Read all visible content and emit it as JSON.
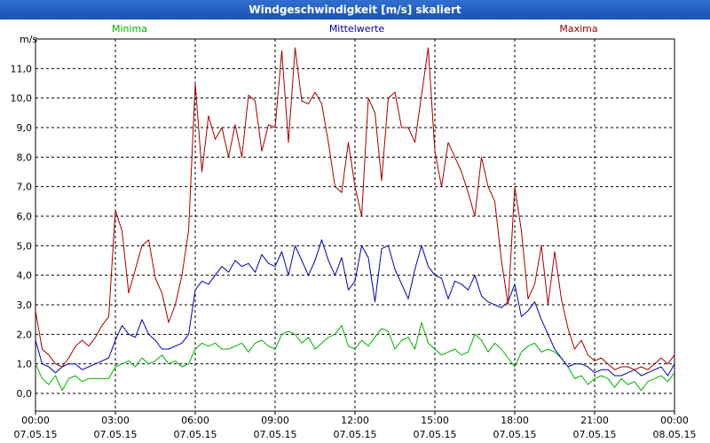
{
  "window": {
    "title": "Windgeschwindigkeit [m/s] skaliert"
  },
  "colors": {
    "minima": "#00b000",
    "mittelwerte": "#0000aa",
    "maxima": "#a00000",
    "grid": "#000000",
    "titlebar": "#2160c4"
  },
  "chart_data": {
    "type": "line",
    "title": "Windgeschwindigkeit [m/s] skaliert",
    "ylabel": "m/s",
    "ylim": [
      -0.6,
      12.0
    ],
    "xlim": [
      "07.05.15 00:00",
      "08.05.15 00:00"
    ],
    "grid": "on (dashed)",
    "legend": "top",
    "yticks": [
      "0,0",
      "1,0",
      "2,0",
      "3,0",
      "4,0",
      "5,0",
      "6,0",
      "7,0",
      "8,0",
      "9,0",
      "10,0",
      "11,0"
    ],
    "xticks": [
      {
        "time": "00:00",
        "date": "07.05.15"
      },
      {
        "time": "03:00",
        "date": "07.05.15"
      },
      {
        "time": "06:00",
        "date": "07.05.15"
      },
      {
        "time": "09:00",
        "date": "07.05.15"
      },
      {
        "time": "12:00",
        "date": "07.05.15"
      },
      {
        "time": "15:00",
        "date": "07.05.15"
      },
      {
        "time": "18:00",
        "date": "07.05.15"
      },
      {
        "time": "21:00",
        "date": "07.05.15"
      },
      {
        "time": "00:00",
        "date": "08.05.15"
      }
    ],
    "x_hours": [
      0,
      0.25,
      0.5,
      0.75,
      1,
      1.25,
      1.5,
      1.75,
      2,
      2.25,
      2.5,
      2.75,
      3,
      3.25,
      3.5,
      3.75,
      4,
      4.25,
      4.5,
      4.75,
      5,
      5.25,
      5.5,
      5.75,
      6,
      6.25,
      6.5,
      6.75,
      7,
      7.25,
      7.5,
      7.75,
      8,
      8.25,
      8.5,
      8.75,
      9,
      9.25,
      9.5,
      9.75,
      10,
      10.25,
      10.5,
      10.75,
      11,
      11.25,
      11.5,
      11.75,
      12,
      12.25,
      12.5,
      12.75,
      13,
      13.25,
      13.5,
      13.75,
      14,
      14.25,
      14.5,
      14.75,
      15,
      15.25,
      15.5,
      15.75,
      16,
      16.25,
      16.5,
      16.75,
      17,
      17.25,
      17.5,
      17.75,
      18,
      18.25,
      18.5,
      18.75,
      19,
      19.25,
      19.5,
      19.75,
      20,
      20.25,
      20.5,
      20.75,
      21,
      21.25,
      21.5,
      21.75,
      22,
      22.25,
      22.5,
      22.75,
      23,
      23.25,
      23.5,
      23.75,
      24
    ],
    "series": [
      {
        "name": "Minima",
        "values": [
          1.0,
          0.5,
          0.3,
          0.6,
          0.1,
          0.5,
          0.6,
          0.4,
          0.5,
          0.5,
          0.5,
          0.5,
          0.9,
          1.0,
          1.1,
          0.9,
          1.2,
          1.0,
          1.1,
          1.3,
          1.0,
          1.1,
          0.9,
          1.0,
          1.5,
          1.7,
          1.6,
          1.7,
          1.5,
          1.5,
          1.6,
          1.7,
          1.4,
          1.7,
          1.8,
          1.6,
          1.5,
          2.0,
          2.1,
          2.0,
          1.7,
          1.9,
          1.5,
          1.7,
          1.9,
          2.0,
          2.3,
          1.6,
          1.5,
          1.8,
          1.6,
          1.9,
          2.2,
          2.1,
          1.5,
          1.8,
          1.9,
          1.5,
          2.4,
          1.7,
          1.5,
          1.3,
          1.4,
          1.5,
          1.3,
          1.4,
          2.0,
          1.8,
          1.4,
          1.7,
          1.5,
          1.2,
          0.9,
          1.4,
          1.6,
          1.7,
          1.4,
          1.5,
          1.4,
          1.2,
          0.9,
          0.5,
          0.6,
          0.3,
          0.5,
          0.6,
          0.5,
          0.2,
          0.5,
          0.3,
          0.4,
          0.1,
          0.4,
          0.5,
          0.6,
          0.4,
          0.7
        ]
      },
      {
        "name": "Mittelwerte",
        "values": [
          1.8,
          1.0,
          0.9,
          0.7,
          0.9,
          1.0,
          1.0,
          0.8,
          0.9,
          1.0,
          1.1,
          1.2,
          1.8,
          2.3,
          2.0,
          1.9,
          2.5,
          2.0,
          1.8,
          1.5,
          1.5,
          1.6,
          1.7,
          2.0,
          3.5,
          3.8,
          3.7,
          4.0,
          4.3,
          4.1,
          4.5,
          4.3,
          4.4,
          4.1,
          4.7,
          4.4,
          4.3,
          4.8,
          4.0,
          5.0,
          4.5,
          4.0,
          4.5,
          5.2,
          4.5,
          4.0,
          4.6,
          3.5,
          3.8,
          5.0,
          4.6,
          3.1,
          4.9,
          5.0,
          4.2,
          3.7,
          3.2,
          4.2,
          5.0,
          4.3,
          4.0,
          3.9,
          3.2,
          3.8,
          3.7,
          3.5,
          4.0,
          3.3,
          3.1,
          3.0,
          2.9,
          3.1,
          3.7,
          2.6,
          2.8,
          3.1,
          2.5,
          2.0,
          1.5,
          1.2,
          0.9,
          1.0,
          1.0,
          0.9,
          0.7,
          0.8,
          0.8,
          0.6,
          0.6,
          0.7,
          0.8,
          0.6,
          0.7,
          0.8,
          0.9,
          0.6,
          1.0
        ]
      },
      {
        "name": "Maxima",
        "values": [
          2.8,
          1.5,
          1.3,
          1.0,
          0.9,
          1.2,
          1.6,
          1.8,
          1.6,
          1.9,
          2.3,
          2.6,
          6.2,
          5.5,
          3.4,
          4.2,
          5.0,
          5.2,
          3.9,
          3.4,
          2.4,
          3.0,
          4.0,
          5.5,
          10.5,
          7.5,
          9.4,
          8.6,
          9.0,
          8.0,
          9.1,
          8.0,
          10.1,
          9.9,
          8.2,
          9.1,
          9.0,
          11.6,
          8.5,
          11.7,
          9.9,
          9.8,
          10.2,
          9.8,
          8.5,
          7.0,
          6.8,
          8.5,
          7.0,
          6.0,
          10.0,
          9.5,
          7.2,
          10.0,
          10.2,
          9.0,
          9.0,
          8.5,
          10.1,
          11.7,
          8.2,
          7.0,
          8.5,
          8.0,
          7.5,
          6.8,
          6.0,
          8.0,
          7.0,
          6.5,
          4.5,
          3.0,
          7.0,
          5.5,
          3.2,
          3.7,
          5.0,
          3.0,
          4.8,
          3.2,
          2.2,
          1.5,
          1.8,
          1.3,
          1.1,
          1.2,
          1.0,
          0.8,
          0.9,
          0.9,
          0.8,
          0.9,
          0.8,
          1.0,
          1.2,
          1.0,
          1.3
        ]
      }
    ]
  }
}
